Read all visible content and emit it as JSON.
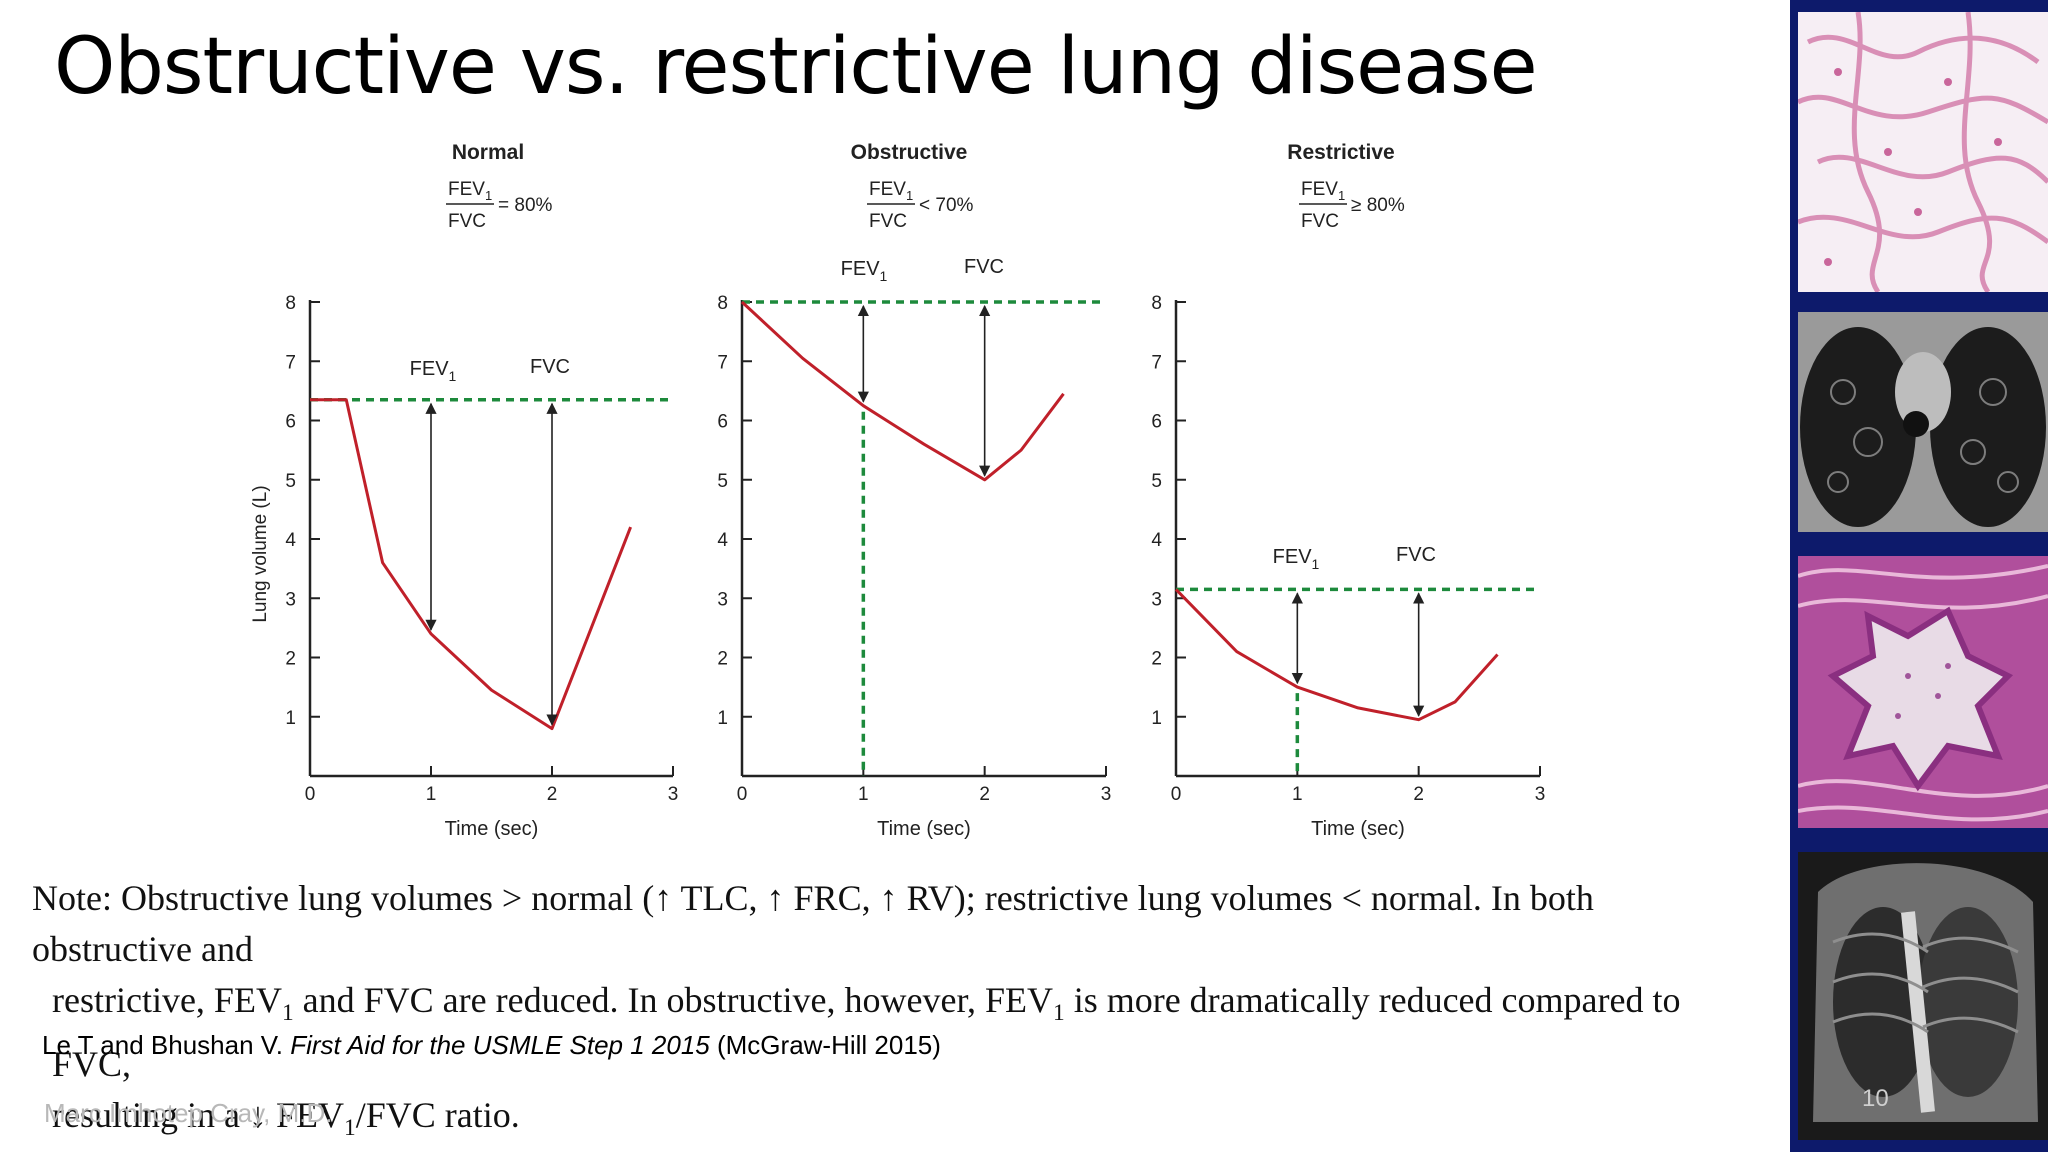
{
  "title": "Obstructive vs. restrictive lung disease",
  "colors": {
    "curve": "#c0202a",
    "dashed": "#1d8a3c",
    "axis": "#222222",
    "sidebar": "#0d1a6b"
  },
  "chart_data": [
    {
      "type": "line",
      "title": "Normal",
      "ratio_op": "= 80%",
      "ylabel": "Lung volume (L)",
      "xlabel": "Time (sec)",
      "xlim": [
        0,
        3
      ],
      "ylim": [
        0,
        8
      ],
      "xticks": [
        "0",
        "1",
        "2",
        "3"
      ],
      "yticks": [
        "1",
        "2",
        "3",
        "4",
        "5",
        "6",
        "7",
        "8"
      ],
      "annotations": [
        "FEV",
        "1",
        "FVC"
      ],
      "series": [
        {
          "x": [
            0,
            0.3,
            0.6,
            1.0,
            1.5,
            2.0,
            2.65
          ],
          "y": [
            6.35,
            6.35,
            3.6,
            2.4,
            1.45,
            0.8,
            4.2
          ]
        }
      ],
      "dashed_level": 6.35,
      "fev1_volume": 2.4,
      "fvc_volume": 0.8
    },
    {
      "type": "line",
      "title": "Obstructive",
      "ratio_op": "< 70%",
      "ylabel": "",
      "xlabel": "Time (sec)",
      "xlim": [
        0,
        3
      ],
      "ylim": [
        0,
        8
      ],
      "xticks": [
        "0",
        "1",
        "2",
        "3"
      ],
      "yticks": [
        "1",
        "2",
        "3",
        "4",
        "5",
        "6",
        "7",
        "8"
      ],
      "annotations": [
        "FEV",
        "1",
        "FVC"
      ],
      "series": [
        {
          "x": [
            0,
            0.5,
            1.0,
            1.5,
            2.0,
            2.3,
            2.65
          ],
          "y": [
            8.0,
            7.05,
            6.25,
            5.6,
            5.0,
            5.5,
            6.45
          ]
        }
      ],
      "dashed_level": 8.0,
      "fev1_volume": 6.25,
      "fvc_volume": 5.0
    },
    {
      "type": "line",
      "title": "Restrictive",
      "ratio_op": "≥ 80%",
      "ylabel": "",
      "xlabel": "Time (sec)",
      "xlim": [
        0,
        3
      ],
      "ylim": [
        0,
        8
      ],
      "xticks": [
        "0",
        "1",
        "2",
        "3"
      ],
      "yticks": [
        "1",
        "2",
        "3",
        "4",
        "5",
        "6",
        "7",
        "8"
      ],
      "annotations": [
        "FEV",
        "1",
        "FVC"
      ],
      "series": [
        {
          "x": [
            0,
            0.5,
            1.0,
            1.5,
            2.0,
            2.3,
            2.65
          ],
          "y": [
            3.15,
            2.1,
            1.5,
            1.15,
            0.95,
            1.25,
            2.05
          ]
        }
      ],
      "dashed_level": 3.15,
      "fev1_volume": 1.5,
      "fvc_volume": 0.95
    }
  ],
  "ratio": {
    "num": "FEV",
    "num_sub": "1",
    "den": "FVC"
  },
  "note": {
    "l1": "Note: Obstructive lung volumes > normal (↑ TLC, ↑ FRC, ↑ RV); restrictive lung volumes < normal. In both obstructive and",
    "l2a": "restrictive, FEV",
    "l2b": "1",
    "l2c": " and FVC are reduced. In obstructive, however, FEV",
    "l2d": "1",
    "l2e": " is more dramatically reduced compared to FVC,",
    "l3a": "resulting in a ↓ FEV",
    "l3b": "1",
    "l3c": "/FVC ratio."
  },
  "citation": {
    "authors": "Le T and Bhushan V. ",
    "book": "First Aid for the USMLE Step 1 2015",
    "publisher": " (McGraw-Hill 2015)"
  },
  "author": "Marc Imhotep Cray, M.D.",
  "page_number": "10",
  "sidebar_images": [
    "lung-histology-image",
    "chest-ct-image",
    "bronchus-histology-image",
    "chest-xray-image"
  ]
}
